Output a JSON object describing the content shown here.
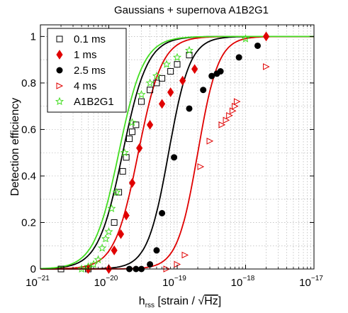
{
  "chart_data": {
    "type": "scatter",
    "title": "Gaussians + supernova A1B2G1",
    "ylabel": "Detection efficiency",
    "xlabel": {
      "main": "h",
      "subscript": "rss",
      "unit_prefix": " [strain / ",
      "sqrt_symbol": "√",
      "unit_radicand": "Hz",
      "unit_suffix": "]"
    },
    "x_scale": "log",
    "xlim": [
      1e-21,
      1e-17
    ],
    "ylim": [
      0,
      1.05
    ],
    "x_ticks": [
      {
        "value": 1e-21,
        "base": "10",
        "exp": "−21"
      },
      {
        "value": 1e-20,
        "base": "10",
        "exp": "−20"
      },
      {
        "value": 1e-19,
        "base": "10",
        "exp": "−19"
      },
      {
        "value": 1e-18,
        "base": "10",
        "exp": "−18"
      },
      {
        "value": 1e-17,
        "base": "10",
        "exp": "−17"
      }
    ],
    "y_ticks": [
      {
        "value": 0,
        "label": "0"
      },
      {
        "value": 0.2,
        "label": "0.2"
      },
      {
        "value": 0.4,
        "label": "0.4"
      },
      {
        "value": 0.6,
        "label": "0.6"
      },
      {
        "value": 0.8,
        "label": "0.8"
      },
      {
        "value": 1,
        "label": "1"
      }
    ],
    "grid": true,
    "legend_position": "top-left",
    "series": [
      {
        "name": "0.1 ms",
        "color": "#000000",
        "marker": "square-open",
        "curve": {
          "h50": 1.6e-20,
          "slope": 2.4
        },
        "x": [
          2e-21,
          5e-21,
          1.2e-20,
          1.4e-20,
          1.6e-20,
          1.8e-20,
          2e-20,
          2.2e-20,
          2.5e-20,
          3e-20,
          4e-20,
          5e-20,
          6e-20,
          8e-20,
          1e-19,
          1.5e-19
        ],
        "y": [
          0,
          0,
          0.2,
          0.33,
          0.42,
          0.48,
          0.56,
          0.59,
          0.62,
          0.72,
          0.77,
          0.8,
          0.82,
          0.85,
          0.88,
          0.92
        ]
      },
      {
        "name": "1 ms",
        "color": "#e00000",
        "marker": "diamond-filled",
        "curve": {
          "h50": 2.7e-20,
          "slope": 2.5
        },
        "x": [
          5e-21,
          1e-20,
          1.2e-20,
          1.5e-20,
          1.8e-20,
          2.2e-20,
          2.8e-20,
          4e-20,
          6e-20,
          8e-20,
          1.2e-19,
          1.8e-19,
          2e-18
        ],
        "y": [
          0,
          0,
          0.08,
          0.15,
          0.23,
          0.37,
          0.52,
          0.62,
          0.71,
          0.76,
          0.81,
          0.86,
          1.0
        ]
      },
      {
        "name": "2.5 ms",
        "color": "#000000",
        "marker": "circle-filled",
        "curve": {
          "h50": 7.5e-20,
          "slope": 2.8
        },
        "x": [
          2e-20,
          2.5e-20,
          3e-20,
          4e-20,
          5e-20,
          6e-20,
          9e-20,
          1.5e-19,
          2.4e-19,
          3.2e-19,
          3.8e-19,
          4.3e-19,
          8e-19,
          1.5e-18
        ],
        "y": [
          0,
          0,
          0,
          0.02,
          0.08,
          0.24,
          0.48,
          0.69,
          0.77,
          0.83,
          0.84,
          0.85,
          0.91,
          0.96
        ]
      },
      {
        "name": "4 ms",
        "color": "#e00000",
        "marker": "triangle-right-open",
        "curve": {
          "h50": 2e-19,
          "slope": 2.9
        },
        "x": [
          7e-20,
          1e-19,
          1.3e-19,
          2.2e-19,
          3e-19,
          4.5e-19,
          5.2e-19,
          5.8e-19,
          6.5e-19,
          7e-19,
          7.5e-19,
          2e-18
        ],
        "y": [
          0,
          0.02,
          0.06,
          0.44,
          0.55,
          0.62,
          0.64,
          0.66,
          0.68,
          0.7,
          0.72,
          0.87
        ]
      },
      {
        "name": "A1B2G1",
        "color": "#44dd22",
        "marker": "pentagram-open",
        "curve": {
          "h50": 1.4e-20,
          "slope": 2.4
        },
        "x": [
          4e-21,
          5e-21,
          6e-21,
          7e-21,
          8e-21,
          9e-21,
          1e-20,
          1.1e-20,
          1.3e-20,
          1.7e-20,
          2.2e-20,
          3e-20,
          4e-20,
          5e-20,
          7e-20,
          1e-19,
          1.5e-19,
          1e-18
        ],
        "y": [
          0,
          0.01,
          0.02,
          0.04,
          0.09,
          0.13,
          0.16,
          0.26,
          0.33,
          0.5,
          0.63,
          0.75,
          0.8,
          0.83,
          0.88,
          0.91,
          0.94,
          0.99
        ]
      }
    ]
  }
}
